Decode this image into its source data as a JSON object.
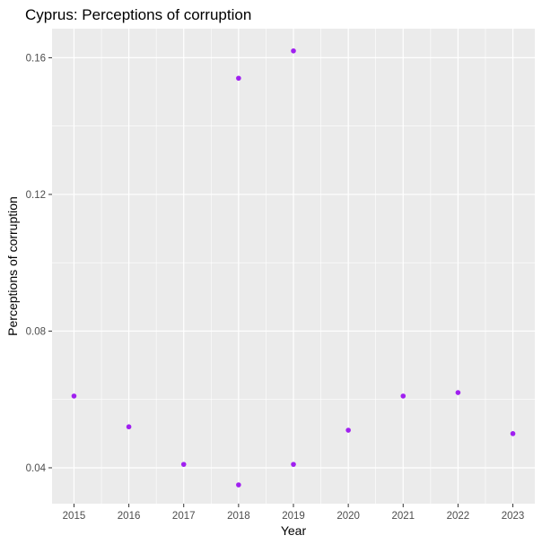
{
  "chart_data": {
    "type": "scatter",
    "title": "Cyprus: Perceptions of corruption",
    "xlabel": "Year",
    "ylabel": "Perceptions of corruption",
    "x_ticks": [
      "2015",
      "2016",
      "2017",
      "2018",
      "2019",
      "2020",
      "2021",
      "2022",
      "2023"
    ],
    "y_ticks": [
      "0.04",
      "0.08",
      "0.12",
      "0.16"
    ],
    "xlim": [
      2014.6,
      2023.4
    ],
    "ylim": [
      0.0295,
      0.1685
    ],
    "grid": true,
    "legend": "none",
    "colors": {
      "point": "#a020f0",
      "panel": "#ebebeb",
      "grid": "#ffffff"
    },
    "points": [
      {
        "x": 2015,
        "y": 0.061
      },
      {
        "x": 2016,
        "y": 0.052
      },
      {
        "x": 2017,
        "y": 0.041
      },
      {
        "x": 2018,
        "y": 0.154
      },
      {
        "x": 2018,
        "y": 0.035
      },
      {
        "x": 2019,
        "y": 0.162
      },
      {
        "x": 2019,
        "y": 0.041
      },
      {
        "x": 2020,
        "y": 0.051
      },
      {
        "x": 2021,
        "y": 0.061
      },
      {
        "x": 2022,
        "y": 0.062
      },
      {
        "x": 2023,
        "y": 0.05
      }
    ]
  }
}
